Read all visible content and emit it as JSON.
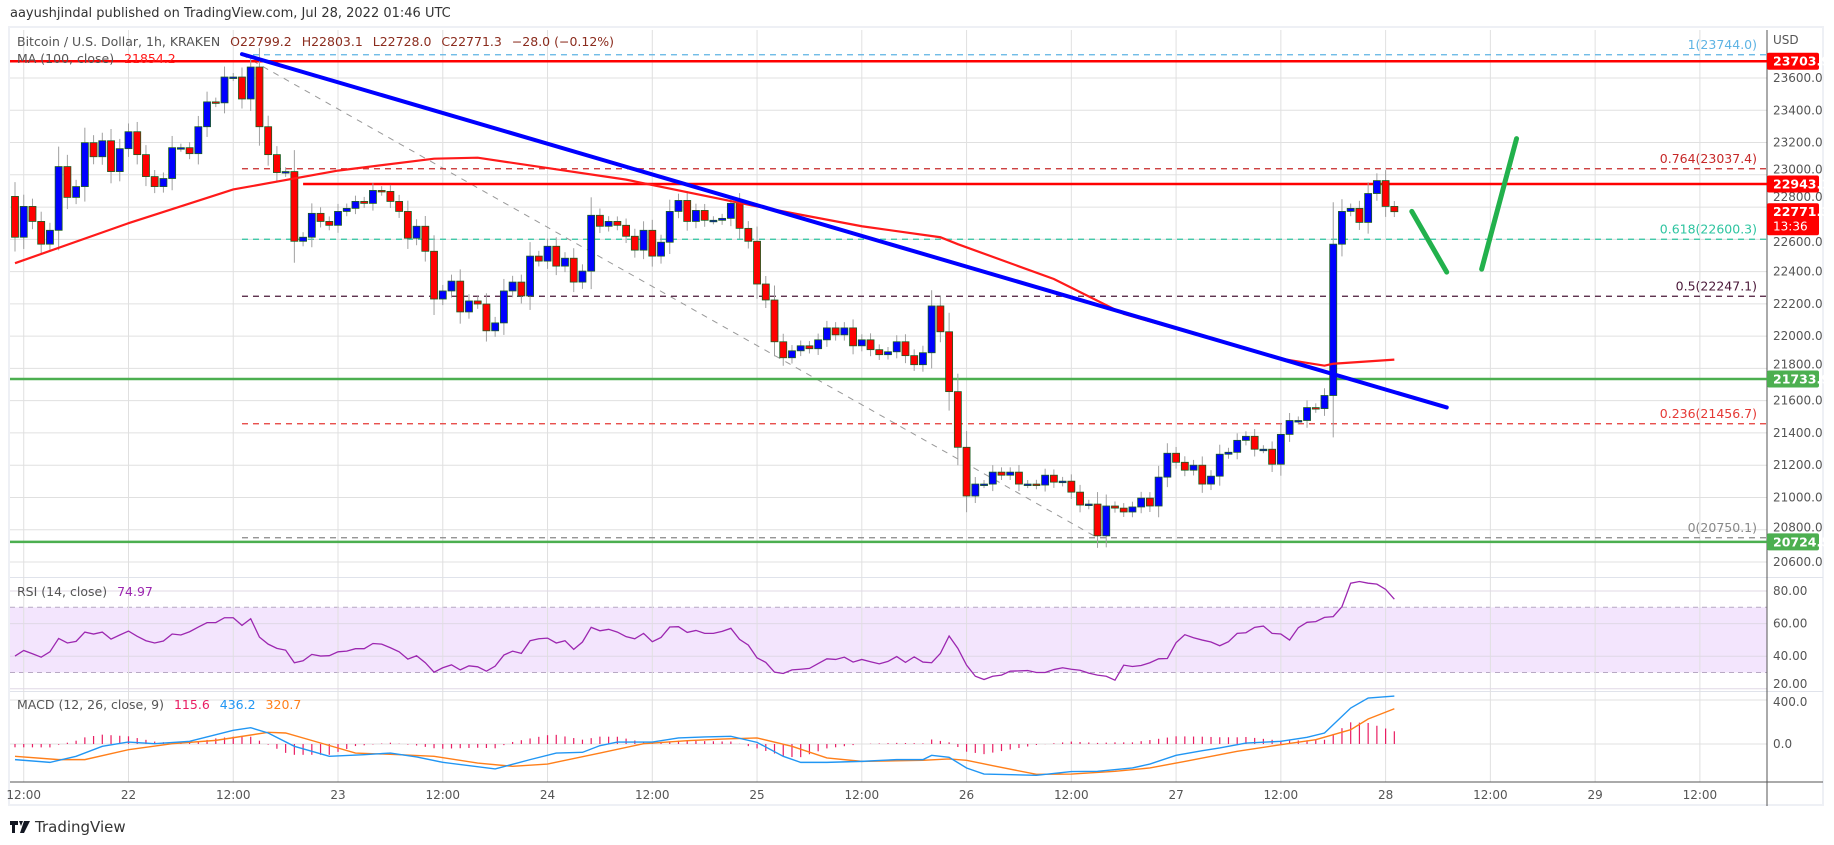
{
  "publisher_line": "aayushjindal published on TradingView.com, Jul 28, 2022 01:46 UTC",
  "legend": {
    "symbol": "Bitcoin / U.S. Dollar, 1h, KRAKEN",
    "open": "O22799.2",
    "high": "H22803.1",
    "low": "L22728.0",
    "close": "C22771.3",
    "change": "−28.0 (−0.12%)",
    "ma_label": "MA (100, close)",
    "ma_value": "21854.2",
    "rsi_label": "RSI (14, close)",
    "rsi_value": "74.97",
    "macd_label": "MACD (12, 26, close, 9)",
    "macd_hist_value": "115.6",
    "macd_value": "436.2",
    "signal_value": "320.7"
  },
  "branding": "TradingView",
  "colors": {
    "up_candle": "#0000ff",
    "down_candle": "#ff0000",
    "candle_border": "#1b5e20",
    "ma": "#ff1a1a",
    "trendline": "#0000ff",
    "arrows": "#22b14c",
    "resistance": "#ff0000",
    "support": "#4caf50",
    "rsi": "#9c27b0",
    "rsi_band": "#f3e5fd",
    "macd": "#2196f3",
    "signal": "#ff7f1a",
    "histogram": "#e91e63"
  },
  "chart_data": {
    "type": "candlestick",
    "currency": "USD",
    "interval": "1h",
    "start": "2022-07-21 11:00",
    "first_open": 22866,
    "closes": [
      22613,
      22804,
      22711,
      22570,
      22656,
      23051,
      22860,
      22927,
      23199,
      23112,
      23211,
      23020,
      23162,
      23267,
      23125,
      22989,
      22927,
      22977,
      23168,
      23168,
      23131,
      23298,
      23452,
      23446,
      23606,
      23606,
      23470,
      23668,
      23298,
      23125,
      23014,
      23020,
      22588,
      22613,
      22761,
      22711,
      22687,
      22773,
      22792,
      22835,
      22823,
      22903,
      22897,
      22835,
      22773,
      22607,
      22681,
      22526,
      22230,
      22280,
      22341,
      22150,
      22218,
      22199,
      22033,
      22082,
      22280,
      22335,
      22249,
      22496,
      22465,
      22557,
      22434,
      22483,
      22335,
      22403,
      22749,
      22681,
      22711,
      22687,
      22619,
      22533,
      22656,
      22496,
      22582,
      22773,
      22841,
      22711,
      22779,
      22718,
      22718,
      22730,
      22823,
      22668,
      22588,
      22323,
      22224,
      21965,
      21866,
      21909,
      21940,
      21922,
      21977,
      22051,
      22008,
      22051,
      21940,
      21977,
      21916,
      21885,
      21903,
      21965,
      21879,
      21823,
      21897,
      22187,
      22027,
      21656,
      21311,
      21009,
      21083,
      21083,
      21157,
      21138,
      21157,
      21083,
      21083,
      21077,
      21138,
      21095,
      21101,
      21033,
      20953,
      20959,
      20762,
      20947,
      20934,
      20910,
      20941,
      20996,
      20947,
      21126,
      21274,
      21218,
      21169,
      21200,
      21083,
      21132,
      21268,
      21280,
      21354,
      21379,
      21299,
      21299,
      21206,
      21391,
      21477,
      21477,
      21557,
      21551,
      21632,
      22570,
      22773,
      22792,
      22705,
      22884,
      22964,
      22804,
      22771.3
    ],
    "price_axis": {
      "min": 20550,
      "max": 23750,
      "ticks": [
        "23600.0",
        "23400.0",
        "23200.0",
        "23000.0",
        "22800.0",
        "22600.0",
        "22400.0",
        "22200.0",
        "22000.0",
        "21800.0",
        "21600.0",
        "21400.0",
        "21200.0",
        "21000.0",
        "20800.0",
        "20600.0"
      ]
    },
    "time_axis": {
      "ticks": [
        {
          "t": "2022-07-21 12:00",
          "label": "12:00"
        },
        {
          "t": "2022-07-22 00:00",
          "label": "22"
        },
        {
          "t": "2022-07-22 12:00",
          "label": "12:00"
        },
        {
          "t": "2022-07-23 00:00",
          "label": "23"
        },
        {
          "t": "2022-07-23 12:00",
          "label": "12:00"
        },
        {
          "t": "2022-07-24 00:00",
          "label": "24"
        },
        {
          "t": "2022-07-24 12:00",
          "label": "12:00"
        },
        {
          "t": "2022-07-25 00:00",
          "label": "25"
        },
        {
          "t": "2022-07-25 12:00",
          "label": "12:00"
        },
        {
          "t": "2022-07-26 00:00",
          "label": "26"
        },
        {
          "t": "2022-07-26 12:00",
          "label": "12:00"
        },
        {
          "t": "2022-07-27 00:00",
          "label": "27"
        },
        {
          "t": "2022-07-27 12:00",
          "label": "12:00"
        },
        {
          "t": "2022-07-28 00:00",
          "label": "28"
        },
        {
          "t": "2022-07-28 12:00",
          "label": "12:00"
        },
        {
          "t": "2022-07-29 00:00",
          "label": "29"
        },
        {
          "t": "2022-07-29 12:00",
          "label": "12:00"
        }
      ]
    },
    "ma100": [
      [
        "2022-07-21 11:00",
        22452
      ],
      [
        "2022-07-22 00:00",
        22700
      ],
      [
        "2022-07-22 12:00",
        22909
      ],
      [
        "2022-07-23 00:00",
        23026
      ],
      [
        "2022-07-23 11:00",
        23100
      ],
      [
        "2022-07-23 16:00",
        23106
      ],
      [
        "2022-07-24 09:00",
        22970
      ],
      [
        "2022-07-25 00:00",
        22804
      ],
      [
        "2022-07-25 12:00",
        22681
      ],
      [
        "2022-07-25 21:00",
        22613
      ],
      [
        "2022-07-25 23:00",
        22570
      ],
      [
        "2022-07-26 10:00",
        22354
      ],
      [
        "2022-07-26 18:00",
        22138
      ],
      [
        "2022-07-27 00:00",
        22045
      ],
      [
        "2022-07-27 12:00",
        21860
      ],
      [
        "2022-07-27 17:00",
        21817
      ],
      [
        "2022-07-27 18:00",
        21829
      ],
      [
        "2022-07-28 01:00",
        21854.2
      ]
    ],
    "horizontal_levels": [
      {
        "value": 23703.9,
        "label": "23703.9",
        "kind": "resistance",
        "from": "2022-07-21 10:00"
      },
      {
        "value": 22943.1,
        "label": "22943.1",
        "kind": "resistance",
        "from": "2022-07-22 20:00"
      },
      {
        "value": 21733.9,
        "label": "21733.9",
        "kind": "support",
        "from": "2022-07-21 10:00"
      },
      {
        "value": 20724.5,
        "label": "20724.5",
        "kind": "support",
        "from": "2022-07-21 10:00"
      }
    ],
    "last_price": {
      "label": "22771.3",
      "countdown": "13:36"
    },
    "fibonacci": {
      "from": "2022-07-22 13:00",
      "anchor_high": [
        "2022-07-22 13:00",
        23744.0
      ],
      "anchor_low": [
        "2022-07-26 15:00",
        20750.1
      ],
      "levels": [
        {
          "label": "1(23744.0)",
          "value": 23744.0,
          "color": "#5fb4e4"
        },
        {
          "label": "0.764(23037.4)",
          "value": 23037.4,
          "color": "#c62828"
        },
        {
          "label": "0.618(22600.3)",
          "value": 22600.3,
          "color": "#2ec4a0"
        },
        {
          "label": "0.5(22247.1)",
          "value": 22247.1,
          "color": "#4a1838"
        },
        {
          "label": "0.236(21456.7)",
          "value": 21456.7,
          "color": "#e53935"
        },
        {
          "label": "0(20750.1)",
          "value": 20750.1,
          "color": "#888888"
        }
      ]
    },
    "trendline": [
      [
        "2022-07-22 13:00",
        23748
      ],
      [
        "2022-07-28 07:00",
        21558
      ]
    ],
    "arrows": [
      [
        [
          "2022-07-28 03:00",
          22773
        ],
        [
          "2022-07-28 07:00",
          22397
        ]
      ],
      [
        [
          "2022-07-28 11:00",
          22415
        ],
        [
          "2022-07-28 15:00",
          23224
        ]
      ]
    ],
    "rsi": {
      "axis_ticks": [
        "80.00",
        "60.00",
        "40.00",
        "20.00"
      ],
      "band": [
        30,
        70
      ],
      "values": [
        40.1,
        43.5,
        41.5,
        39.4,
        42.7,
        50.9,
        48.1,
        49.1,
        54.8,
        53.6,
        54.8,
        50.5,
        53,
        55.4,
        52.2,
        49.5,
        48.1,
        49.3,
        53.6,
        53,
        55,
        57.9,
        60.6,
        60.6,
        63.6,
        63.6,
        58.9,
        63,
        51.7,
        47.4,
        44.8,
        43.7,
        36,
        37.2,
        41.1,
        40.1,
        40.3,
        42.7,
        43.1,
        44.6,
        44.6,
        47.8,
        47.4,
        45.2,
        42.7,
        38.2,
        40.3,
        36,
        30.2,
        32.9,
        34.7,
        31.6,
        34.1,
        33.5,
        30.8,
        33.9,
        40.7,
        43.1,
        41.7,
        49.5,
        50.7,
        51.1,
        48.1,
        49.5,
        44.2,
        48.7,
        57.7,
        55.6,
        56.5,
        54.8,
        52,
        50.7,
        54,
        48.9,
        51.5,
        57.9,
        58.1,
        54.6,
        55.8,
        54,
        54,
        55.2,
        57.1,
        50.3,
        46.8,
        39,
        36.2,
        30.2,
        29.4,
        31.6,
        32,
        32.5,
        35.5,
        38.4,
        38,
        39.4,
        36.4,
        38,
        36.6,
        35.3,
        36.8,
        39.8,
        36.2,
        39.6,
        36.4,
        36,
        41.7,
        52.4,
        44.8,
        34.5,
        27.7,
        25.7,
        27.7,
        28.4,
        30.8,
        31,
        31.2,
        30,
        30,
        31.8,
        32.9,
        32,
        31.4,
        29.6,
        28.4,
        27.7,
        25.3,
        34.5,
        33.7,
        34.3,
        36,
        38.4,
        38.6,
        48.3,
        53.2,
        51.3,
        49.9,
        48.7,
        46.4,
        48.9,
        54,
        54.4,
        57.7,
        58.5,
        54,
        53.6,
        49.9,
        57.5,
        60.8,
        61.2,
        63.8,
        64.3,
        70.4,
        84.8,
        85.8,
        84.8,
        84.2,
        81,
        74.97
      ]
    },
    "macd": {
      "axis_ticks": [
        "400.0",
        "0.0"
      ],
      "macd": [
        [
          "2022-07-21 11:00",
          -142
        ],
        [
          "2022-07-21 15:00",
          -167
        ],
        [
          "2022-07-21 18:00",
          -112
        ],
        [
          "2022-07-21 21:00",
          -21
        ],
        [
          "2022-07-22 00:00",
          18
        ],
        [
          "2022-07-22 03:00",
          3
        ],
        [
          "2022-07-22 07:00",
          24
        ],
        [
          "2022-07-22 12:00",
          124
        ],
        [
          "2022-07-22 14:00",
          148
        ],
        [
          "2022-07-22 16:00",
          100
        ],
        [
          "2022-07-22 19:00",
          -21
        ],
        [
          "2022-07-22 23:00",
          -112
        ],
        [
          "2022-07-23 03:00",
          -97
        ],
        [
          "2022-07-23 06:00",
          -82
        ],
        [
          "2022-07-23 09:00",
          -118
        ],
        [
          "2022-07-23 12:00",
          -167
        ],
        [
          "2022-07-23 18:00",
          -227
        ],
        [
          "2022-07-23 22:00",
          -142
        ],
        [
          "2022-07-24 01:00",
          -82
        ],
        [
          "2022-07-24 04:00",
          -76
        ],
        [
          "2022-07-24 06:00",
          -15
        ],
        [
          "2022-07-24 08:00",
          18
        ],
        [
          "2022-07-24 12:00",
          18
        ],
        [
          "2022-07-24 15:00",
          55
        ],
        [
          "2022-07-24 18:00",
          64
        ],
        [
          "2022-07-24 21:00",
          70
        ],
        [
          "2022-07-25 00:00",
          15
        ],
        [
          "2022-07-25 03:00",
          -112
        ],
        [
          "2022-07-25 05:00",
          -167
        ],
        [
          "2022-07-25 08:00",
          -167
        ],
        [
          "2022-07-25 12:00",
          -158
        ],
        [
          "2022-07-25 16:00",
          -142
        ],
        [
          "2022-07-25 19:00",
          -142
        ],
        [
          "2022-07-25 20:00",
          -103
        ],
        [
          "2022-07-25 22:00",
          -121
        ],
        [
          "2022-07-26 00:00",
          -218
        ],
        [
          "2022-07-26 02:00",
          -273
        ],
        [
          "2022-07-26 08:00",
          -285
        ],
        [
          "2022-07-26 12:00",
          -251
        ],
        [
          "2022-07-26 15:00",
          -248
        ],
        [
          "2022-07-26 19:00",
          -218
        ],
        [
          "2022-07-26 21:00",
          -182
        ],
        [
          "2022-07-27 00:00",
          -103
        ],
        [
          "2022-07-27 03:00",
          -61
        ],
        [
          "2022-07-27 05:00",
          -36
        ],
        [
          "2022-07-27 08:00",
          9
        ],
        [
          "2022-07-27 12:00",
          24
        ],
        [
          "2022-07-27 15:00",
          61
        ],
        [
          "2022-07-27 17:00",
          100
        ],
        [
          "2022-07-27 20:00",
          327
        ],
        [
          "2022-07-27 22:00",
          418
        ],
        [
          "2022-07-28 01:00",
          436.2
        ]
      ],
      "signal": [
        [
          "2022-07-21 11:00",
          -112
        ],
        [
          "2022-07-21 16:00",
          -142
        ],
        [
          "2022-07-21 19:00",
          -142
        ],
        [
          "2022-07-22 00:00",
          -52
        ],
        [
          "2022-07-22 05:00",
          3
        ],
        [
          "2022-07-22 10:00",
          33
        ],
        [
          "2022-07-22 16:00",
          106
        ],
        [
          "2022-07-22 18:00",
          100
        ],
        [
          "2022-07-22 22:00",
          9
        ],
        [
          "2022-07-23 02:00",
          -82
        ],
        [
          "2022-07-23 07:00",
          -97
        ],
        [
          "2022-07-23 11:00",
          -112
        ],
        [
          "2022-07-23 16:00",
          -173
        ],
        [
          "2022-07-23 20:00",
          -203
        ],
        [
          "2022-07-24 00:00",
          -182
        ],
        [
          "2022-07-24 06:00",
          -82
        ],
        [
          "2022-07-24 11:00",
          3
        ],
        [
          "2022-07-24 16:00",
          30
        ],
        [
          "2022-07-24 20:00",
          45
        ],
        [
          "2022-07-25 00:00",
          55
        ],
        [
          "2022-07-25 04:00",
          -21
        ],
        [
          "2022-07-25 08:00",
          -127
        ],
        [
          "2022-07-25 12:00",
          -158
        ],
        [
          "2022-07-25 19:00",
          -148
        ],
        [
          "2022-07-25 22:00",
          -136
        ],
        [
          "2022-07-26 00:00",
          -148
        ],
        [
          "2022-07-26 03:00",
          -197
        ],
        [
          "2022-07-26 08:00",
          -276
        ],
        [
          "2022-07-26 12:00",
          -273
        ],
        [
          "2022-07-26 17:00",
          -248
        ],
        [
          "2022-07-26 21:00",
          -218
        ],
        [
          "2022-07-27 01:00",
          -158
        ],
        [
          "2022-07-27 07:00",
          -67
        ],
        [
          "2022-07-27 12:00",
          -6
        ],
        [
          "2022-07-27 16:00",
          39
        ],
        [
          "2022-07-27 20:00",
          130
        ],
        [
          "2022-07-27 22:00",
          227
        ],
        [
          "2022-07-28 01:00",
          320.7
        ]
      ]
    }
  }
}
